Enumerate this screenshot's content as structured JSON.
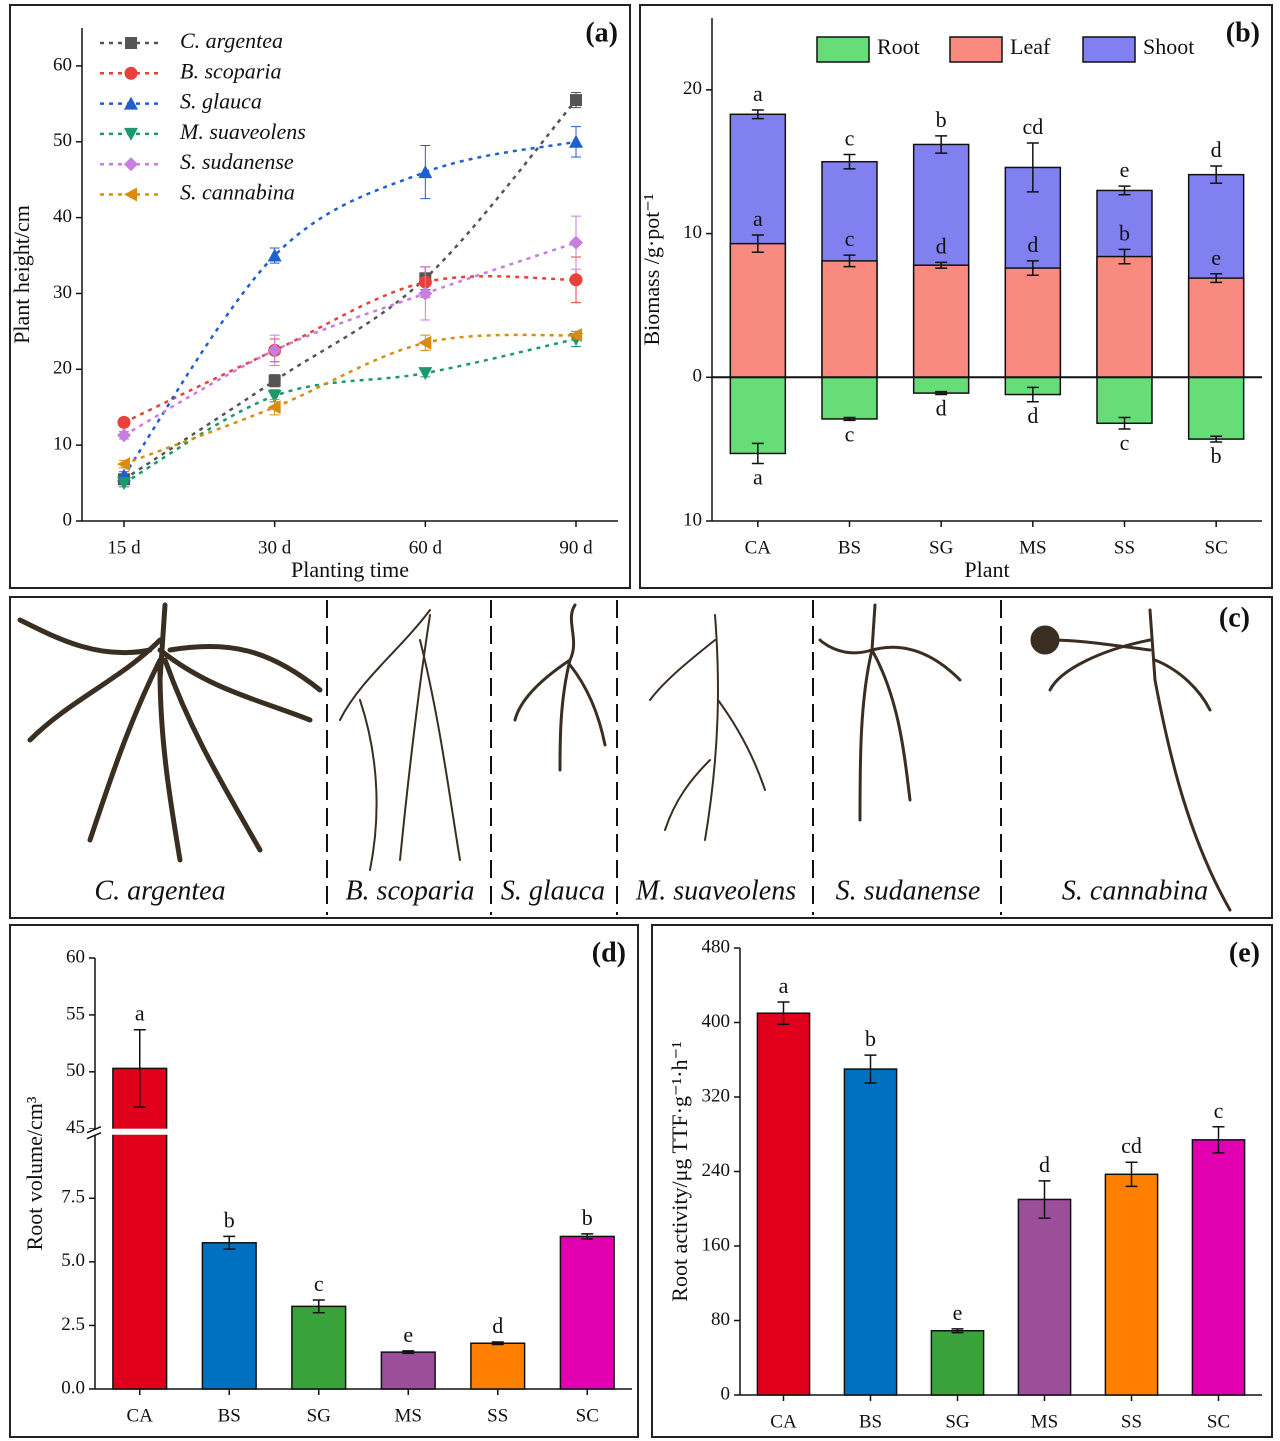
{
  "chart_data": [
    {
      "type": "line",
      "panel_label": "(a)",
      "xlabel": "Planting time",
      "ylabel": "Plant height/cm",
      "categories": [
        "15 d",
        "30 d",
        "60 d",
        "90 d"
      ],
      "ylim": [
        0,
        65
      ],
      "yticks": [
        0,
        10,
        20,
        30,
        40,
        50,
        60
      ],
      "legend": "upper left",
      "series": [
        {
          "name": "C. argentea",
          "color": "#555555",
          "marker": "square",
          "values": [
            5.5,
            18.5,
            32,
            55.5
          ],
          "errors": [
            0.5,
            0.8,
            1.5,
            1
          ]
        },
        {
          "name": "B. scoparia",
          "color": "#e8403a",
          "marker": "circle",
          "values": [
            13,
            22.5,
            31.5,
            31.8
          ],
          "errors": [
            0.5,
            1.5,
            2,
            3
          ]
        },
        {
          "name": "S. glauca",
          "color": "#1f5fd0",
          "marker": "triangle-up",
          "values": [
            6,
            35,
            46,
            50
          ],
          "errors": [
            0.5,
            1,
            3.5,
            2
          ]
        },
        {
          "name": "M. suaveolens",
          "color": "#1a9a6a",
          "marker": "triangle-down",
          "values": [
            5,
            16.5,
            19.5,
            24
          ],
          "errors": [
            0.5,
            0.8,
            0.5,
            1
          ]
        },
        {
          "name": "S. sudanense",
          "color": "#c77ee0",
          "marker": "diamond",
          "values": [
            11.3,
            22.5,
            30,
            36.7
          ],
          "errors": [
            0.5,
            2,
            3.5,
            3.5
          ]
        },
        {
          "name": "S. cannabina",
          "color": "#d98c10",
          "marker": "triangle-left",
          "values": [
            7.5,
            15,
            23.5,
            24.5
          ],
          "errors": [
            0.5,
            1,
            1,
            0.5
          ]
        }
      ]
    },
    {
      "type": "bar",
      "panel_label": "(b)",
      "xlabel": "Plant",
      "ylabel": "Biomass /g·pot⁻¹",
      "barmode": "overlay",
      "categories": [
        "CA",
        "BS",
        "SG",
        "MS",
        "SS",
        "SC"
      ],
      "ylim": [
        -10,
        25
      ],
      "yticks": [
        {
          "value": -10,
          "label": "10"
        },
        0,
        10,
        20
      ],
      "legend": "upper center",
      "series": [
        {
          "name": "Root",
          "color": "#66dd77",
          "values": [
            -5.3,
            -2.9,
            -1.1,
            -1.2,
            -3.2,
            -4.3
          ],
          "errors": [
            0.7,
            0.1,
            0.1,
            0.5,
            0.4,
            0.2
          ],
          "letters": [
            "a",
            "c",
            "d",
            "d",
            "c",
            "b"
          ]
        },
        {
          "name": "Leaf",
          "color": "#f88a80",
          "values": [
            9.3,
            8.1,
            7.8,
            7.6,
            8.4,
            6.9
          ],
          "errors": [
            0.6,
            0.4,
            0.2,
            0.5,
            0.5,
            0.3
          ],
          "letters": [
            "a",
            "c",
            "d",
            "d",
            "b",
            "e"
          ]
        },
        {
          "name": "Shoot",
          "color": "#8080f0",
          "values": [
            18.3,
            15,
            16.2,
            14.6,
            13,
            14.1
          ],
          "errors": [
            0.3,
            0.5,
            0.6,
            1.7,
            0.3,
            0.6
          ],
          "letters": [
            "a",
            "c",
            "b",
            "cd",
            "e",
            "d"
          ]
        }
      ]
    },
    {
      "type": "bar",
      "panel_label": "(d)",
      "ylabel": "Root volume/cm³",
      "categories": [
        "CA",
        "BS",
        "SG",
        "MS",
        "SS",
        "SC"
      ],
      "ylim": [
        0,
        60
      ],
      "ybreak": [
        10,
        45
      ],
      "yticks": [
        {
          "value": 0,
          "label": "0.0"
        },
        2.5,
        {
          "value": 5,
          "label": "5.0"
        },
        7.5,
        45,
        50,
        55,
        60
      ],
      "colors": [
        "#e0001b",
        "#0070c0",
        "#3aa23a",
        "#9b4f9b",
        "#ff8000",
        "#e000b0"
      ],
      "values": [
        50.3,
        5.75,
        3.25,
        1.45,
        1.8,
        6.0
      ],
      "errors": [
        3.4,
        0.25,
        0.25,
        0.05,
        0.05,
        0.1
      ],
      "letters": [
        "a",
        "b",
        "c",
        "e",
        "d",
        "b"
      ]
    },
    {
      "type": "bar",
      "panel_label": "(e)",
      "ylabel": "Root activity/μg TTF·g⁻¹·h⁻¹",
      "categories": [
        "CA",
        "BS",
        "SG",
        "MS",
        "SS",
        "SC"
      ],
      "ylim": [
        0,
        480
      ],
      "yticks": [
        0,
        80,
        160,
        240,
        320,
        400,
        480
      ],
      "colors": [
        "#e0001b",
        "#0070c0",
        "#3aa23a",
        "#9b4f9b",
        "#ff8000",
        "#e000b0"
      ],
      "values": [
        410,
        350,
        69,
        210,
        237,
        274
      ],
      "errors": [
        12,
        15,
        2,
        20,
        13,
        14
      ],
      "letters": [
        "a",
        "b",
        "e",
        "d",
        "cd",
        "c"
      ]
    }
  ],
  "photo_panel": {
    "panel_label": "(c)",
    "names": [
      "C. argentea",
      "B. scoparia",
      "S. glauca",
      "M. suaveolens",
      "S. sudanense",
      "S. cannabina"
    ]
  }
}
